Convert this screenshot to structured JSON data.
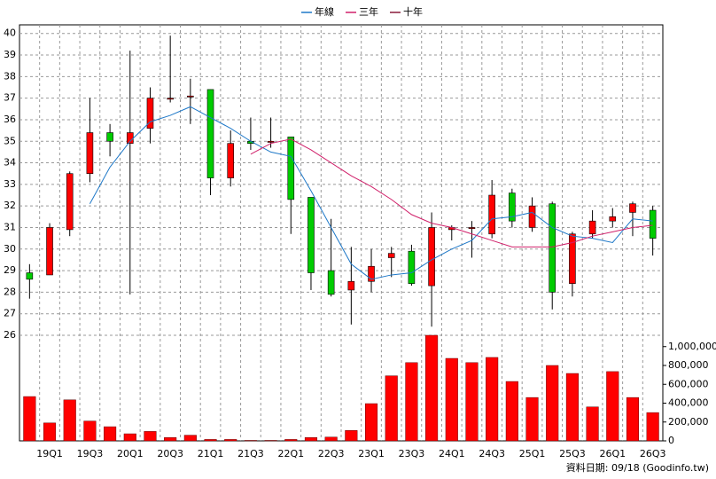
{
  "chart_data": {
    "type": "candlestick",
    "categories": [
      null,
      "19Q1",
      null,
      "19Q3",
      null,
      "20Q1",
      null,
      "20Q3",
      null,
      "21Q1",
      null,
      "21Q3",
      null,
      "22Q1",
      null,
      "22Q3",
      null,
      "23Q1",
      null,
      "23Q3",
      null,
      "24Q1",
      null,
      "24Q3",
      null,
      "25Q1",
      null,
      "25Q3",
      null,
      "26Q1",
      null,
      "26Q3"
    ],
    "open": [
      28.9,
      28.8,
      30.9,
      33.5,
      35.4,
      34.9,
      35.6,
      36.95,
      37.05,
      37.4,
      33.3,
      35.0,
      34.95,
      35.2,
      32.4,
      29.0,
      28.1,
      28.5,
      29.6,
      29.9,
      28.3,
      30.9,
      30.95,
      30.7,
      32.6,
      31.0,
      32.1,
      28.4,
      30.7,
      31.3,
      31.7,
      31.8
    ],
    "high": [
      29.3,
      31.2,
      33.6,
      37.0,
      35.8,
      39.2,
      37.5,
      39.9,
      37.9,
      37.4,
      35.5,
      36.1,
      36.1,
      35.2,
      32.4,
      31.4,
      30.1,
      30.0,
      30.1,
      30.2,
      31.7,
      31.1,
      31.3,
      33.2,
      32.8,
      32.4,
      32.2,
      30.8,
      31.8,
      31.9,
      32.2,
      32.0
    ],
    "low": [
      27.7,
      28.8,
      30.6,
      33.1,
      34.3,
      27.9,
      34.9,
      36.8,
      35.8,
      32.5,
      32.9,
      34.6,
      34.7,
      30.7,
      28.1,
      27.8,
      26.5,
      28.0,
      28.7,
      28.3,
      26.4,
      30.4,
      29.6,
      30.5,
      31.0,
      30.8,
      27.2,
      27.8,
      30.5,
      31.0,
      30.6,
      29.7
    ],
    "close": [
      28.6,
      31.0,
      33.5,
      35.4,
      35.0,
      35.4,
      37.0,
      37.0,
      37.1,
      33.3,
      34.9,
      34.9,
      35.0,
      32.3,
      28.9,
      27.9,
      28.5,
      29.2,
      29.8,
      28.4,
      31.0,
      31.0,
      31.0,
      32.5,
      31.3,
      32.0,
      28.0,
      30.7,
      31.3,
      31.5,
      32.1,
      30.5
    ],
    "up_color": "#ff0000",
    "down_color": "#00cc00",
    "series": [
      {
        "name": "年線",
        "color": "#1e78c8",
        "values": [
          null,
          null,
          null,
          32.1,
          33.8,
          35.0,
          35.9,
          36.2,
          36.6,
          36.1,
          35.6,
          35.0,
          34.5,
          34.3,
          32.7,
          31.0,
          29.3,
          28.6,
          28.8,
          28.9,
          29.5,
          30.0,
          30.4,
          31.4,
          31.5,
          31.7,
          31.0,
          30.6,
          30.5,
          30.3,
          31.4,
          31.3
        ]
      },
      {
        "name": "三年",
        "color": "#d0206a",
        "values": [
          null,
          null,
          null,
          null,
          null,
          null,
          null,
          null,
          null,
          null,
          null,
          34.4,
          34.9,
          35.1,
          34.6,
          34.0,
          33.4,
          32.9,
          32.3,
          31.6,
          31.2,
          31.0,
          30.7,
          30.4,
          30.1,
          30.1,
          30.1,
          30.3,
          30.6,
          30.8,
          31.0,
          31.1
        ]
      },
      {
        "name": "十年",
        "color": "#8b1a3a",
        "values": [
          null,
          null,
          null,
          null,
          null,
          null,
          null,
          null,
          null,
          null,
          null,
          null,
          null,
          null,
          null,
          null,
          null,
          null,
          null,
          null,
          null,
          null,
          null,
          null,
          null,
          null,
          null,
          null,
          null,
          null,
          null,
          null
        ]
      }
    ],
    "ylim": [
      26,
      40.4
    ],
    "yticks": [
      26,
      27,
      28,
      29,
      30,
      31,
      32,
      33,
      34,
      35,
      36,
      37,
      38,
      39,
      40
    ],
    "volume": {
      "color": "#ff0000",
      "values": [
        470000,
        190000,
        435000,
        210000,
        150000,
        75000,
        100000,
        35000,
        60000,
        15000,
        15000,
        5000,
        5000,
        15000,
        35000,
        40000,
        110000,
        395000,
        690000,
        830000,
        1120000,
        875000,
        830000,
        885000,
        630000,
        460000,
        800000,
        715000,
        360000,
        735000,
        460000,
        300000
      ]
    },
    "y2lim": [
      0,
      1120000
    ],
    "y2ticks": [
      0,
      {
        "value": 200000,
        "label": "200,000"
      },
      {
        "value": 400000,
        "label": "400,000"
      },
      {
        "value": 600000,
        "label": "600,000"
      },
      {
        "value": 800000,
        "label": "800,000"
      },
      {
        "value": 1000000,
        "label": "1,000,000"
      }
    ],
    "grid": true,
    "footnote": "資料日期: 09/18 (Goodinfo.tw)"
  }
}
